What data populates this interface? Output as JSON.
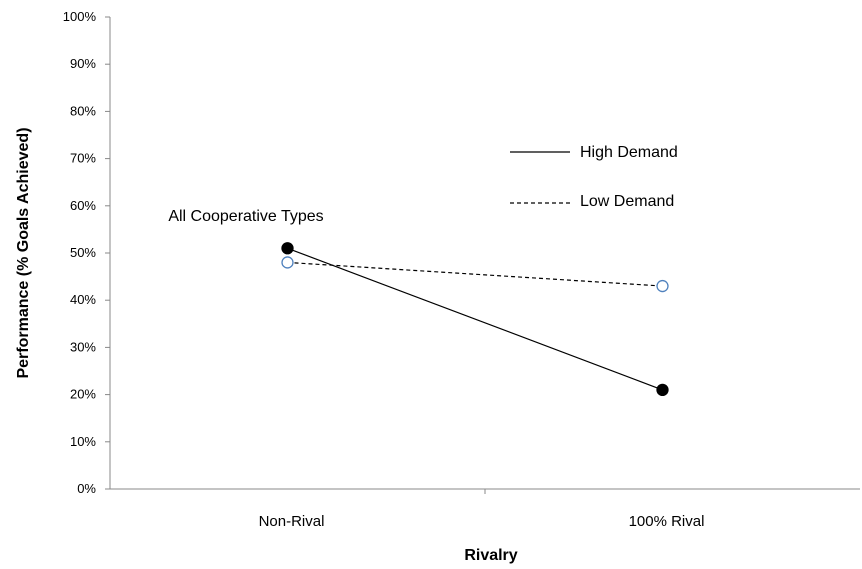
{
  "chart_data": {
    "type": "line",
    "categories": [
      "Non-Rival",
      "100% Rival"
    ],
    "series": [
      {
        "name": "High Demand",
        "values": [
          0.51,
          0.21
        ],
        "line_style": "solid",
        "marker": "filled-circle",
        "color": "#000000"
      },
      {
        "name": "Low Demand",
        "values": [
          0.48,
          0.43
        ],
        "line_style": "dashed",
        "marker": "open-circle",
        "color": "#4F81BD"
      }
    ],
    "xlabel": "Rivalry",
    "ylabel": "Performance (% Goals Achieved)",
    "ylim": [
      0,
      1
    ],
    "yticks": [
      "0%",
      "10%",
      "20%",
      "30%",
      "40%",
      "50%",
      "60%",
      "70%",
      "80%",
      "90%",
      "100%"
    ],
    "grid": false,
    "legend_placement": "right",
    "annotations": [
      {
        "text": "All Cooperative Types"
      }
    ]
  }
}
